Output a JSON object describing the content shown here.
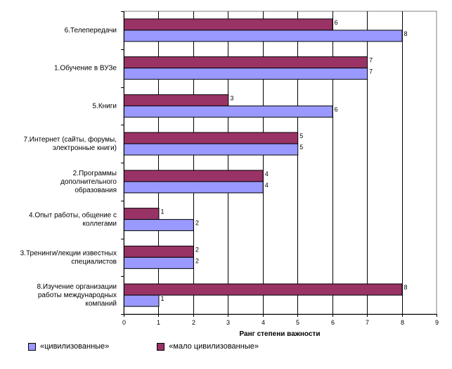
{
  "chart_data": {
    "type": "bar",
    "orientation": "horizontal",
    "categories": [
      "6.Телепередачи",
      "1.Обучение в ВУЗе",
      "5.Книги",
      "7.Интернет (сайты, форумы, электронные книги)",
      "2.Программы дополнительного образования",
      "4.Опыт работы, общение с коллегами",
      "3.Тренинги/лекции известных специалистов",
      "8.Изучение организации работы  международных компаний"
    ],
    "category_lines": [
      [
        "6.Телепередачи"
      ],
      [
        "1.Обучение в ВУЗе"
      ],
      [
        "5.Книги"
      ],
      [
        "7.Интернет (сайты, форумы,",
        "электронные книги)"
      ],
      [
        "2.Программы",
        "дополнительного",
        "образования"
      ],
      [
        "4.Опыт работы, общение с",
        "коллегами"
      ],
      [
        "3.Тренинги/лекции известных",
        "специалистов"
      ],
      [
        "8.Изучение организации",
        "работы  международных",
        "компаний"
      ]
    ],
    "series": [
      {
        "name": "«мало цивилизованные»",
        "color": "#993366",
        "values": [
          6,
          7,
          3,
          5,
          4,
          1,
          2,
          8
        ]
      },
      {
        "name": "«цивилизованные»",
        "color": "#9999ff",
        "values": [
          8,
          7,
          6,
          5,
          4,
          2,
          2,
          1
        ]
      }
    ],
    "xlabel": "Ранг степени важности",
    "xlim": [
      0,
      9
    ],
    "xticks": [
      "0",
      "1",
      "2",
      "3",
      "4",
      "5",
      "6",
      "7",
      "8",
      "9"
    ],
    "grid": true,
    "legend_position": "bottom",
    "legend_order": [
      "«цивилизованные»",
      "«мало цивилизованные»"
    ]
  }
}
